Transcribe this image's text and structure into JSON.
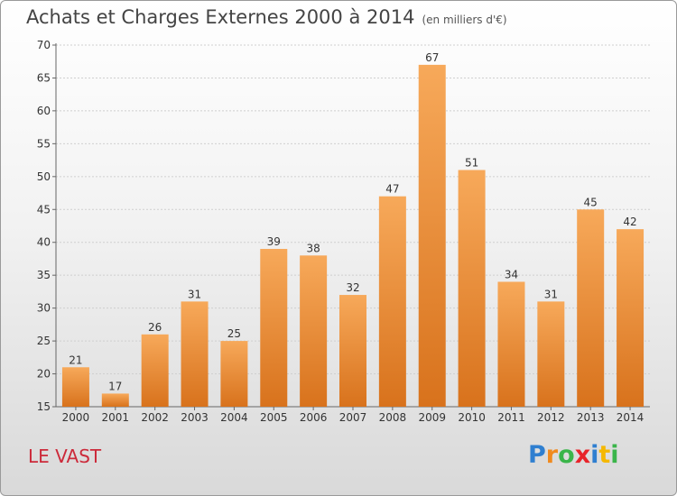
{
  "header": {
    "title": "Achats et Charges Externes 2000 à 2014",
    "unit": "(en milliers d'€)"
  },
  "place_name": "LE VAST",
  "logo": {
    "text": "Proxiti",
    "letter_colors": [
      "#2f7fd0",
      "#f08a1e",
      "#3ab54a",
      "#e8242a",
      "#2f7fd0",
      "#f5b800",
      "#3ab54a"
    ]
  },
  "colors": {
    "bar_top": "#f7a95a",
    "bar_bottom": "#d8721c",
    "grid": "#cfcfcf",
    "axis": "#666666",
    "label": "#333333"
  },
  "chart_data": {
    "type": "bar",
    "title": "Achats et Charges Externes 2000 à 2014",
    "subtitle": "(en milliers d'€)",
    "categories": [
      "2000",
      "2001",
      "2002",
      "2003",
      "2004",
      "2005",
      "2006",
      "2007",
      "2008",
      "2009",
      "2010",
      "2011",
      "2012",
      "2013",
      "2014"
    ],
    "values": [
      21,
      17,
      26,
      31,
      25,
      39,
      38,
      32,
      47,
      67,
      51,
      34,
      31,
      45,
      42
    ],
    "ylim": [
      15,
      70
    ],
    "yticks": [
      15,
      20,
      25,
      30,
      35,
      40,
      45,
      50,
      55,
      60,
      65,
      70
    ],
    "grid": true,
    "data_labels": true
  }
}
